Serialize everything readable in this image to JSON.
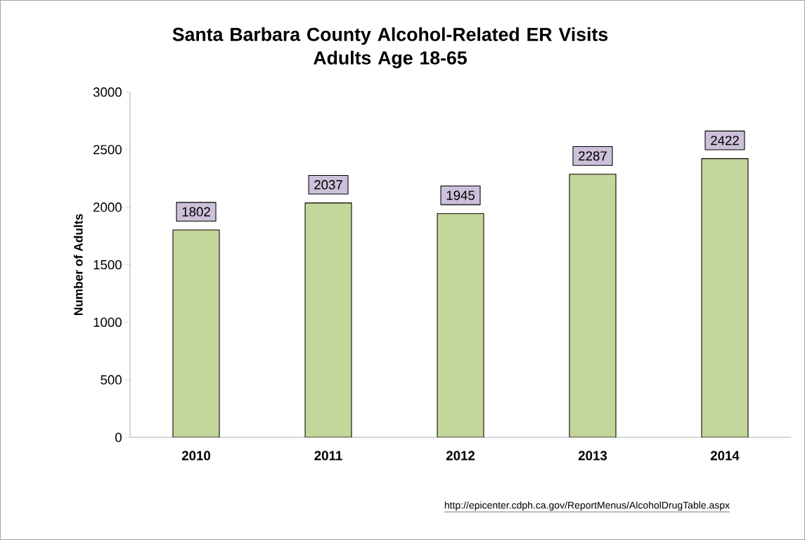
{
  "chart_data": {
    "type": "bar",
    "title": "Santa Barbara County Alcohol-Related ER Visits\nAdults Age 18-65",
    "ylabel": "Number of Adults",
    "categories": [
      "2010",
      "2011",
      "2012",
      "2013",
      "2014"
    ],
    "values": [
      1802,
      2037,
      1945,
      2287,
      2422
    ],
    "color": "#c4d79b",
    "data_labels": true,
    "ylim": [
      0,
      3000
    ],
    "yticks": [
      0,
      500,
      1000,
      1500,
      2000,
      2500,
      3000
    ],
    "grid": false,
    "annotations": [
      "http://epicenter.cdph.ca.gov/ReportMenus/AlcoholDrugTable.aspx"
    ]
  }
}
